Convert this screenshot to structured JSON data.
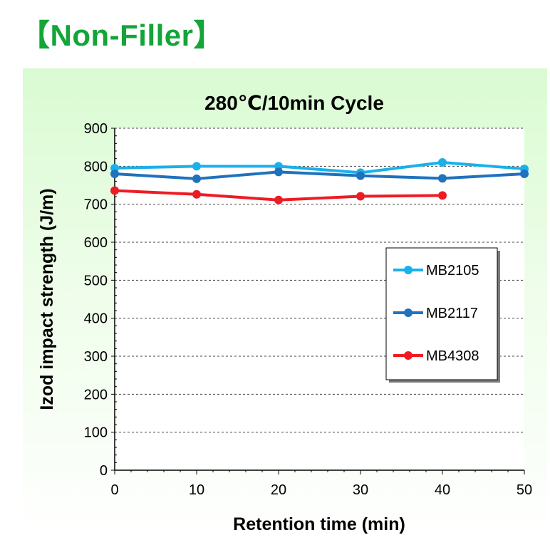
{
  "page": {
    "heading": "【Non-Filler】"
  },
  "chart_data": {
    "type": "line",
    "title": "280℃/10min Cycle",
    "xlabel": "Retention time (min)",
    "ylabel": "Izod impact strength (J/m)",
    "xlim": [
      0,
      50
    ],
    "ylim": [
      0,
      900
    ],
    "xticks": [
      0,
      10,
      20,
      30,
      40,
      50
    ],
    "yticks": [
      0,
      100,
      200,
      300,
      400,
      500,
      600,
      700,
      800,
      900
    ],
    "grid": "horizontal dashed",
    "legend_position": "right-center",
    "series": [
      {
        "name": "MB2105",
        "color": "#1ab0ea",
        "x": [
          0,
          10,
          20,
          30,
          40,
          50
        ],
        "y": [
          795,
          800,
          800,
          783,
          810,
          793
        ]
      },
      {
        "name": "MB2117",
        "color": "#1f72bd",
        "x": [
          0,
          10,
          20,
          30,
          40,
          50
        ],
        "y": [
          780,
          767,
          785,
          775,
          768,
          780
        ]
      },
      {
        "name": "MB4308",
        "color": "#ed1c24",
        "x": [
          0,
          10,
          20,
          30,
          40
        ],
        "y": [
          736,
          726,
          711,
          721,
          723
        ]
      }
    ]
  }
}
